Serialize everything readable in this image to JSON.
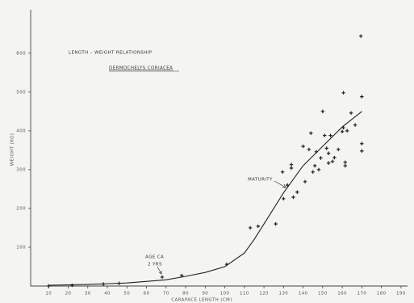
{
  "chart_data": {
    "type": "scatter",
    "title": "LENGTH – WEIGHT RELATIONSHIP",
    "subtitle": "DERMOCHELYS CORIACEA",
    "x_label": "CARAPACE LENGTH (CM)",
    "y_label": "WEIGHT (KG)",
    "annotations": [
      "MATURITY",
      "AGE CA",
      "2 YRS"
    ],
    "xlim": [
      0,
      195
    ],
    "ylim": [
      0,
      710
    ],
    "xticks": [
      10,
      20,
      30,
      40,
      50,
      60,
      70,
      80,
      90,
      100,
      110,
      120,
      130,
      140,
      150,
      160,
      170,
      180,
      190
    ],
    "yticks": [
      100,
      200,
      300,
      400,
      500,
      600
    ],
    "color": "#222222",
    "x": [
      10,
      22,
      38,
      46,
      68,
      78,
      101,
      113,
      117,
      126,
      130,
      129.5,
      132,
      134,
      134,
      135,
      137,
      140,
      141,
      143,
      144,
      145,
      146,
      146.7,
      148,
      149,
      150,
      151,
      152,
      153,
      153,
      154,
      155,
      156,
      158,
      160,
      160.6,
      160.6,
      161.5,
      161.5,
      162.5,
      164.5,
      166.6,
      169.5,
      170,
      170,
      170
    ],
    "y": [
      0,
      2,
      5,
      7,
      23,
      27,
      56,
      150,
      154,
      160,
      225,
      294,
      260,
      304,
      313,
      229,
      242,
      360,
      269,
      352,
      394,
      294,
      310,
      346,
      300,
      330,
      450,
      388,
      355,
      342,
      317,
      388,
      321,
      331,
      352,
      398,
      498,
      408,
      310,
      319,
      400,
      446,
      415,
      644,
      488,
      367,
      348
    ],
    "curve": {
      "x": [
        10,
        30,
        50,
        70,
        80,
        90,
        100,
        110,
        115,
        120,
        125,
        130,
        140,
        150,
        160,
        170
      ],
      "y": [
        2,
        4,
        8,
        16,
        25,
        35,
        50,
        85,
        120,
        160,
        200,
        240,
        310,
        360,
        410,
        450
      ]
    }
  }
}
